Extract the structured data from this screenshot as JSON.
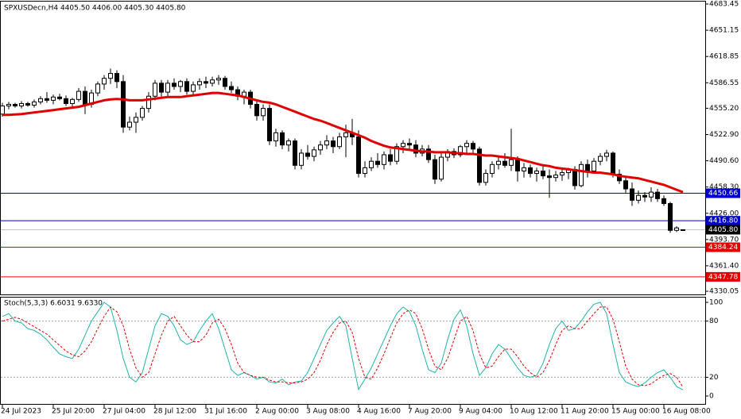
{
  "chart_data": [
    {
      "type": "candlestick",
      "title": "SPXUSDecn,H4  4405.50 4406.00 4405.30 4405.80",
      "up_color": "#ffffff",
      "down_color": "#000000",
      "outline": "#000000",
      "xlim": [
        -0.375,
        110.5
      ],
      "xticks": [
        {
          "value": 0,
          "label": "24 Jul 2023"
        },
        {
          "value": 8,
          "label": "25 Jul 20:00"
        },
        {
          "value": 16,
          "label": "27 Jul 04:00"
        },
        {
          "value": 24,
          "label": "28 Jul 12:00"
        },
        {
          "value": 32,
          "label": "31 Jul 16:00"
        },
        {
          "value": 40,
          "label": "2 Aug 00:00"
        },
        {
          "value": 48,
          "label": "3 Aug 08:00"
        },
        {
          "value": 56,
          "label": "4 Aug 16:00"
        },
        {
          "value": 64,
          "label": "7 Aug 20:00"
        },
        {
          "value": 72,
          "label": "9 Aug 04:00"
        },
        {
          "value": 80,
          "label": "10 Aug 12:00"
        },
        {
          "value": 88,
          "label": "11 Aug 20:00"
        },
        {
          "value": 96,
          "label": "15 Aug 00:00"
        },
        {
          "value": 104,
          "label": "16 Aug 08:00"
        }
      ],
      "ylim": [
        4326.2,
        4686.4
      ],
      "yticks": [
        4683.45,
        4651.15,
        4618.85,
        4586.55,
        {
          "value": 4555.2,
          "label": "4555.20"
        },
        {
          "value": 4522.9,
          "label": "4522.90"
        },
        {
          "value": 4490.6,
          "label": "4490.60"
        },
        {
          "value": 4458.3,
          "label": "4458.30"
        },
        {
          "value": 4426,
          "label": "4426.00"
        },
        {
          "value": 4393.7,
          "label": "4393.70"
        },
        {
          "value": 4361.4,
          "label": "4361.40"
        },
        4330.05
      ],
      "levels": [
        {
          "value": 4450.66,
          "label": "4450.66",
          "color": "#0000c8"
        },
        {
          "value": 4416.8,
          "label": "4416.80",
          "color": "#0000c8"
        },
        {
          "value": 4405.8,
          "label": "4405.80",
          "color": "#000000",
          "line_color": "#c0c0c0"
        },
        {
          "value": 4384.24,
          "label": "4384.24",
          "color": "#e00000"
        },
        {
          "value": 4347.78,
          "label": "4347.78",
          "color": "#e00000"
        }
      ],
      "ma": {
        "color": "#e00000",
        "values": [
          4547,
          4547,
          4547.5,
          4548,
          4549,
          4550,
          4551,
          4552,
          4553,
          4554,
          4555,
          4556,
          4557,
          4559,
          4561,
          4563,
          4565,
          4566,
          4566.5,
          4566,
          4565,
          4565,
          4565,
          4566,
          4567,
          4568,
          4569,
          4569,
          4569,
          4570,
          4571,
          4572,
          4573,
          4574,
          4574,
          4573,
          4572,
          4571,
          4569,
          4567,
          4565,
          4563,
          4562,
          4560,
          4557,
          4554,
          4551,
          4548,
          4545,
          4542,
          4540,
          4537,
          4534,
          4531,
          4528,
          4525,
          4522,
          4519,
          4515,
          4512,
          4509,
          4507,
          4506,
          4505,
          4504,
          4503,
          4502,
          4502,
          4501,
          4501,
          4501,
          4500,
          4500,
          4499,
          4499,
          4498,
          4497,
          4497,
          4496,
          4495,
          4494,
          4493,
          4491,
          4489,
          4487,
          4485,
          4484,
          4482,
          4481,
          4480,
          4479,
          4478,
          4477,
          4476,
          4476,
          4475,
          4474,
          4472,
          4471,
          4470,
          4469,
          4467,
          4465,
          4463,
          4461,
          4458,
          4455,
          4452
        ]
      },
      "candles": [
        [
          4548,
          4562,
          4545,
          4558
        ],
        [
          4558,
          4563,
          4554,
          4560
        ],
        [
          4560,
          4562,
          4556,
          4558
        ],
        [
          4558,
          4564,
          4555,
          4561
        ],
        [
          4561,
          4563,
          4557,
          4559
        ],
        [
          4559,
          4566,
          4556,
          4563
        ],
        [
          4563,
          4570,
          4560,
          4567
        ],
        [
          4567,
          4575,
          4562,
          4565
        ],
        [
          4565,
          4572,
          4560,
          4569
        ],
        [
          4569,
          4573,
          4565,
          4567
        ],
        [
          4567,
          4571,
          4558,
          4561
        ],
        [
          4561,
          4568,
          4555,
          4566
        ],
        [
          4566,
          4580,
          4563,
          4576
        ],
        [
          4576,
          4582,
          4548,
          4560
        ],
        [
          4560,
          4578,
          4556,
          4574
        ],
        [
          4574,
          4588,
          4570,
          4585
        ],
        [
          4585,
          4596,
          4578,
          4592
        ],
        [
          4592,
          4604,
          4585,
          4598
        ],
        [
          4598,
          4602,
          4580,
          4588
        ],
        [
          4588,
          4596,
          4525,
          4532
        ],
        [
          4532,
          4545,
          4528,
          4538
        ],
        [
          4538,
          4550,
          4525,
          4544
        ],
        [
          4544,
          4558,
          4540,
          4555
        ],
        [
          4555,
          4575,
          4550,
          4570
        ],
        [
          4570,
          4590,
          4565,
          4586
        ],
        [
          4586,
          4590,
          4568,
          4575
        ],
        [
          4575,
          4590,
          4570,
          4586
        ],
        [
          4586,
          4592,
          4578,
          4582
        ],
        [
          4582,
          4590,
          4575,
          4588
        ],
        [
          4588,
          4592,
          4572,
          4576
        ],
        [
          4576,
          4588,
          4570,
          4584
        ],
        [
          4584,
          4592,
          4578,
          4588
        ],
        [
          4588,
          4594,
          4580,
          4586
        ],
        [
          4586,
          4594,
          4582,
          4590
        ],
        [
          4590,
          4596,
          4584,
          4592
        ],
        [
          4592,
          4595,
          4578,
          4582
        ],
        [
          4582,
          4588,
          4574,
          4578
        ],
        [
          4578,
          4582,
          4565,
          4570
        ],
        [
          4570,
          4578,
          4560,
          4575
        ],
        [
          4575,
          4578,
          4555,
          4560
        ],
        [
          4560,
          4566,
          4540,
          4546
        ],
        [
          4546,
          4560,
          4540,
          4555
        ],
        [
          4555,
          4560,
          4510,
          4515
        ],
        [
          4515,
          4530,
          4508,
          4525
        ],
        [
          4525,
          4528,
          4505,
          4510
        ],
        [
          4510,
          4518,
          4502,
          4515
        ],
        [
          4515,
          4518,
          4480,
          4485
        ],
        [
          4485,
          4505,
          4480,
          4500
        ],
        [
          4500,
          4510,
          4492,
          4496
        ],
        [
          4496,
          4508,
          4490,
          4504
        ],
        [
          4504,
          4515,
          4498,
          4510
        ],
        [
          4510,
          4522,
          4505,
          4515
        ],
        [
          4515,
          4520,
          4500,
          4508
        ],
        [
          4508,
          4525,
          4505,
          4520
        ],
        [
          4520,
          4535,
          4495,
          4525
        ],
        [
          4525,
          4542,
          4510,
          4520
        ],
        [
          4520,
          4528,
          4470,
          4475
        ],
        [
          4475,
          4490,
          4470,
          4482
        ],
        [
          4482,
          4495,
          4478,
          4490
        ],
        [
          4490,
          4500,
          4482,
          4486
        ],
        [
          4486,
          4502,
          4480,
          4498
        ],
        [
          4498,
          4505,
          4485,
          4490
        ],
        [
          4490,
          4512,
          4486,
          4508
        ],
        [
          4508,
          4516,
          4500,
          4512
        ],
        [
          4512,
          4518,
          4505,
          4510
        ],
        [
          4510,
          4516,
          4495,
          4500
        ],
        [
          4500,
          4510,
          4496,
          4505
        ],
        [
          4505,
          4510,
          4488,
          4492
        ],
        [
          4492,
          4498,
          4462,
          4468
        ],
        [
          4468,
          4500,
          4465,
          4495
        ],
        [
          4495,
          4505,
          4490,
          4502
        ],
        [
          4502,
          4506,
          4494,
          4498
        ],
        [
          4498,
          4510,
          4495,
          4508
        ],
        [
          4508,
          4516,
          4500,
          4512
        ],
        [
          4512,
          4515,
          4498,
          4505
        ],
        [
          4505,
          4508,
          4460,
          4464
        ],
        [
          4464,
          4480,
          4460,
          4475
        ],
        [
          4475,
          4490,
          4470,
          4486
        ],
        [
          4486,
          4495,
          4480,
          4490
        ],
        [
          4490,
          4500,
          4482,
          4485
        ],
        [
          4485,
          4530,
          4478,
          4492
        ],
        [
          4492,
          4496,
          4465,
          4478
        ],
        [
          4478,
          4488,
          4470,
          4482
        ],
        [
          4482,
          4486,
          4470,
          4475
        ],
        [
          4475,
          4482,
          4465,
          4478
        ],
        [
          4478,
          4484,
          4468,
          4472
        ],
        [
          4472,
          4480,
          4445,
          4470
        ],
        [
          4470,
          4478,
          4465,
          4473
        ],
        [
          4473,
          4480,
          4466,
          4476
        ],
        [
          4476,
          4482,
          4468,
          4480
        ],
        [
          4480,
          4484,
          4455,
          4460
        ],
        [
          4460,
          4490,
          4458,
          4486
        ],
        [
          4486,
          4492,
          4470,
          4478
        ],
        [
          4478,
          4494,
          4475,
          4490
        ],
        [
          4490,
          4500,
          4485,
          4496
        ],
        [
          4496,
          4504,
          4490,
          4500
        ],
        [
          4500,
          4502,
          4470,
          4474
        ],
        [
          4474,
          4480,
          4462,
          4466
        ],
        [
          4466,
          4470,
          4450,
          4456
        ],
        [
          4456,
          4464,
          4435,
          4442
        ],
        [
          4442,
          4454,
          4438,
          4448
        ],
        [
          4448,
          4452,
          4440,
          4446
        ],
        [
          4446,
          4458,
          4440,
          4452
        ],
        [
          4452,
          4456,
          4440,
          4444
        ],
        [
          4444,
          4448,
          4435,
          4438
        ],
        [
          4438,
          4440,
          4402,
          4405
        ],
        [
          4405,
          4410,
          4403,
          4408
        ],
        [
          4405.5,
          4406,
          4405.3,
          4405.8
        ]
      ]
    },
    {
      "type": "line",
      "title": "Stoch(5,3,3) 6.6031 9.6330",
      "xlim": [
        -0.375,
        110.5
      ],
      "ylim": [
        -9.3,
        105.1
      ],
      "yticks": [
        100,
        80,
        20,
        0
      ],
      "levels": [
        80,
        20
      ],
      "lines": [
        {
          "color": "#20b2aa",
          "dashed": false,
          "values": [
            85,
            88,
            80,
            78,
            72,
            70,
            66,
            60,
            52,
            45,
            42,
            40,
            50,
            65,
            80,
            90,
            100,
            95,
            70,
            40,
            20,
            15,
            25,
            50,
            75,
            88,
            85,
            75,
            60,
            55,
            58,
            70,
            80,
            88,
            72,
            50,
            28,
            22,
            25,
            22,
            18,
            20,
            15,
            14,
            18,
            12,
            15,
            16,
            25,
            40,
            55,
            70,
            78,
            85,
            75,
            40,
            7,
            18,
            30,
            45,
            60,
            75,
            88,
            95,
            90,
            75,
            50,
            28,
            25,
            35,
            60,
            82,
            92,
            75,
            45,
            22,
            30,
            45,
            55,
            50,
            40,
            30,
            22,
            20,
            22,
            35,
            55,
            72,
            80,
            70,
            72,
            80,
            90,
            98,
            100,
            88,
            55,
            25,
            15,
            12,
            10,
            14,
            20,
            25,
            28,
            20,
            10,
            6.6031
          ]
        },
        {
          "color": "#e00000",
          "dashed": true,
          "values": [
            80,
            82,
            84,
            82,
            78,
            74,
            70,
            66,
            60,
            54,
            48,
            44,
            42,
            48,
            58,
            72,
            85,
            95,
            90,
            75,
            50,
            30,
            20,
            25,
            45,
            65,
            80,
            85,
            75,
            65,
            58,
            58,
            65,
            78,
            82,
            72,
            55,
            35,
            25,
            22,
            20,
            20,
            17,
            15,
            15,
            14,
            14,
            15,
            18,
            25,
            38,
            55,
            68,
            78,
            80,
            68,
            40,
            20,
            18,
            30,
            45,
            62,
            78,
            88,
            92,
            88,
            72,
            50,
            32,
            28,
            40,
            60,
            80,
            85,
            70,
            45,
            30,
            32,
            42,
            50,
            50,
            42,
            32,
            25,
            20,
            25,
            38,
            55,
            70,
            75,
            72,
            72,
            80,
            88,
            95,
            95,
            82,
            58,
            32,
            18,
            12,
            11,
            13,
            18,
            22,
            24,
            20,
            9.633
          ]
        }
      ]
    }
  ]
}
